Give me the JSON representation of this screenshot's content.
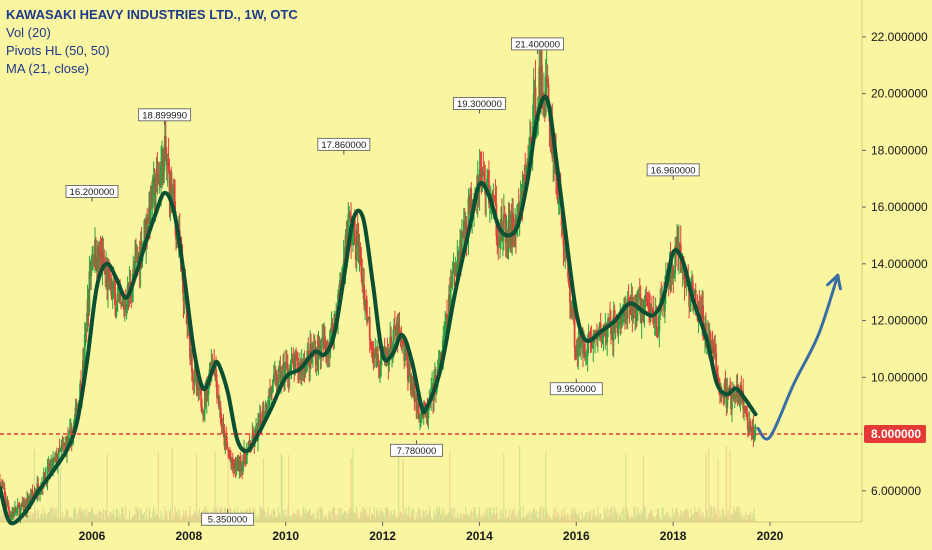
{
  "legend": {
    "title": "KAWASAKI HEAVY INDUSTRIES LTD., 1W, OTC",
    "line2": "Vol (20)",
    "line3": "Pivots HL (50, 50)",
    "line4": "MA (21, close)"
  },
  "colors": {
    "background": "#f9f5a0",
    "ma": "#0b4f33",
    "up": "#2ea043",
    "down": "#e0403a",
    "price_line": "#e53935",
    "arrow": "#3b6ea5",
    "axis_text": "#1a1a1a"
  },
  "chart_data": {
    "type": "candlestick",
    "x_ticks": [
      "2006",
      "2008",
      "2010",
      "2012",
      "2014",
      "2016",
      "2018",
      "2020"
    ],
    "y_ticks": [
      "6.000000",
      "8.000000",
      "10.000000",
      "12.000000",
      "14.000000",
      "16.000000",
      "18.000000",
      "20.000000",
      "22.000000"
    ],
    "ylim": [
      4.9,
      23.3
    ],
    "xlim": [
      2004.1,
      2021.9
    ],
    "current_price": {
      "value": 8.0,
      "label": "8.000000"
    },
    "pivots": [
      {
        "x": 2006.0,
        "y": 16.2,
        "label": "16.200000",
        "type": "high"
      },
      {
        "x": 2007.5,
        "y": 18.9,
        "label": "18.899990",
        "type": "high"
      },
      {
        "x": 2008.8,
        "y": 5.35,
        "label": "5.350000",
        "type": "low"
      },
      {
        "x": 2011.2,
        "y": 17.86,
        "label": "17.860000",
        "type": "high"
      },
      {
        "x": 2012.7,
        "y": 7.78,
        "label": "7.780000",
        "type": "low"
      },
      {
        "x": 2014.0,
        "y": 19.3,
        "label": "19.300000",
        "type": "high"
      },
      {
        "x": 2015.2,
        "y": 21.4,
        "label": "21.400000",
        "type": "high"
      },
      {
        "x": 2016.0,
        "y": 9.95,
        "label": "9.950000",
        "type": "low"
      },
      {
        "x": 2018.0,
        "y": 16.96,
        "label": "16.960000",
        "type": "high"
      }
    ],
    "price_path": [
      [
        2004.1,
        6.3
      ],
      [
        2004.3,
        5.2
      ],
      [
        2004.6,
        5.4
      ],
      [
        2005.0,
        6.4
      ],
      [
        2005.3,
        7.2
      ],
      [
        2005.6,
        8.0
      ],
      [
        2005.8,
        10.0
      ],
      [
        2006.0,
        14.5
      ],
      [
        2006.2,
        14.0
      ],
      [
        2006.4,
        13.0
      ],
      [
        2006.6,
        12.3
      ],
      [
        2006.8,
        13.2
      ],
      [
        2007.0,
        14.5
      ],
      [
        2007.2,
        16.0
      ],
      [
        2007.5,
        17.8
      ],
      [
        2007.7,
        16.0
      ],
      [
        2007.9,
        13.0
      ],
      [
        2008.1,
        10.0
      ],
      [
        2008.3,
        9.0
      ],
      [
        2008.5,
        10.8
      ],
      [
        2008.7,
        8.0
      ],
      [
        2008.9,
        6.8
      ],
      [
        2009.1,
        7.0
      ],
      [
        2009.4,
        8.0
      ],
      [
        2009.7,
        9.6
      ],
      [
        2010.0,
        10.3
      ],
      [
        2010.3,
        10.4
      ],
      [
        2010.6,
        10.9
      ],
      [
        2010.9,
        11.2
      ],
      [
        2011.1,
        12.8
      ],
      [
        2011.3,
        15.5
      ],
      [
        2011.5,
        14.5
      ],
      [
        2011.7,
        12.0
      ],
      [
        2011.9,
        10.3
      ],
      [
        2012.1,
        10.8
      ],
      [
        2012.3,
        11.6
      ],
      [
        2012.5,
        10.5
      ],
      [
        2012.7,
        9.0
      ],
      [
        2012.9,
        8.6
      ],
      [
        2013.2,
        10.5
      ],
      [
        2013.5,
        14.0
      ],
      [
        2013.8,
        16.0
      ],
      [
        2014.0,
        17.2
      ],
      [
        2014.2,
        16.6
      ],
      [
        2014.4,
        15.2
      ],
      [
        2014.6,
        15.0
      ],
      [
        2014.8,
        15.5
      ],
      [
        2015.0,
        17.5
      ],
      [
        2015.2,
        20.3
      ],
      [
        2015.4,
        20.0
      ],
      [
        2015.6,
        17.0
      ],
      [
        2015.8,
        14.0
      ],
      [
        2016.0,
        11.0
      ],
      [
        2016.3,
        11.3
      ],
      [
        2016.6,
        11.6
      ],
      [
        2016.9,
        12.0
      ],
      [
        2017.2,
        12.5
      ],
      [
        2017.5,
        12.4
      ],
      [
        2017.7,
        12.0
      ],
      [
        2017.9,
        13.5
      ],
      [
        2018.1,
        14.3
      ],
      [
        2018.3,
        13.2
      ],
      [
        2018.6,
        12.0
      ],
      [
        2018.8,
        11.0
      ],
      [
        2019.0,
        9.5
      ],
      [
        2019.2,
        9.2
      ],
      [
        2019.4,
        9.4
      ],
      [
        2019.6,
        8.0
      ],
      [
        2019.7,
        8.3
      ]
    ],
    "ma_path": [
      [
        2004.1,
        6.1
      ],
      [
        2004.3,
        4.9
      ],
      [
        2004.6,
        5.2
      ],
      [
        2004.9,
        6.0
      ],
      [
        2005.2,
        6.7
      ],
      [
        2005.5,
        7.5
      ],
      [
        2005.7,
        8.5
      ],
      [
        2005.9,
        10.6
      ],
      [
        2006.1,
        13.2
      ],
      [
        2006.3,
        14.0
      ],
      [
        2006.5,
        13.5
      ],
      [
        2006.7,
        12.8
      ],
      [
        2006.9,
        13.6
      ],
      [
        2007.1,
        14.7
      ],
      [
        2007.3,
        15.7
      ],
      [
        2007.5,
        16.5
      ],
      [
        2007.7,
        15.8
      ],
      [
        2007.9,
        13.6
      ],
      [
        2008.1,
        11.0
      ],
      [
        2008.3,
        9.6
      ],
      [
        2008.5,
        10.3
      ],
      [
        2008.6,
        10.5
      ],
      [
        2008.8,
        9.5
      ],
      [
        2009.0,
        7.8
      ],
      [
        2009.2,
        7.4
      ],
      [
        2009.4,
        7.9
      ],
      [
        2009.7,
        8.9
      ],
      [
        2010.0,
        10.0
      ],
      [
        2010.3,
        10.3
      ],
      [
        2010.6,
        10.9
      ],
      [
        2010.8,
        10.8
      ],
      [
        2011.0,
        11.5
      ],
      [
        2011.2,
        13.5
      ],
      [
        2011.4,
        15.6
      ],
      [
        2011.6,
        15.6
      ],
      [
        2011.8,
        13.3
      ],
      [
        2012.0,
        10.8
      ],
      [
        2012.2,
        10.8
      ],
      [
        2012.4,
        11.5
      ],
      [
        2012.6,
        10.6
      ],
      [
        2012.8,
        9.0
      ],
      [
        2012.9,
        8.9
      ],
      [
        2013.2,
        10.3
      ],
      [
        2013.5,
        13.0
      ],
      [
        2013.8,
        15.3
      ],
      [
        2014.0,
        16.8
      ],
      [
        2014.2,
        16.4
      ],
      [
        2014.4,
        15.3
      ],
      [
        2014.6,
        15.0
      ],
      [
        2014.8,
        15.4
      ],
      [
        2015.0,
        17.0
      ],
      [
        2015.2,
        19.2
      ],
      [
        2015.4,
        19.8
      ],
      [
        2015.6,
        17.5
      ],
      [
        2015.8,
        14.8
      ],
      [
        2016.0,
        12.3
      ],
      [
        2016.2,
        11.3
      ],
      [
        2016.5,
        11.6
      ],
      [
        2016.8,
        12.0
      ],
      [
        2017.1,
        12.6
      ],
      [
        2017.4,
        12.3
      ],
      [
        2017.6,
        12.2
      ],
      [
        2017.8,
        12.8
      ],
      [
        2018.0,
        14.4
      ],
      [
        2018.2,
        14.1
      ],
      [
        2018.4,
        12.8
      ],
      [
        2018.7,
        11.3
      ],
      [
        2018.9,
        9.8
      ],
      [
        2019.1,
        9.4
      ],
      [
        2019.3,
        9.6
      ],
      [
        2019.5,
        9.2
      ],
      [
        2019.7,
        8.7
      ]
    ],
    "projection": {
      "points": [
        [
          2019.75,
          8.2
        ],
        [
          2020.0,
          7.9
        ],
        [
          2020.5,
          9.8
        ],
        [
          2021.0,
          11.5
        ],
        [
          2021.4,
          13.6
        ]
      ],
      "arrowhead": true
    }
  }
}
